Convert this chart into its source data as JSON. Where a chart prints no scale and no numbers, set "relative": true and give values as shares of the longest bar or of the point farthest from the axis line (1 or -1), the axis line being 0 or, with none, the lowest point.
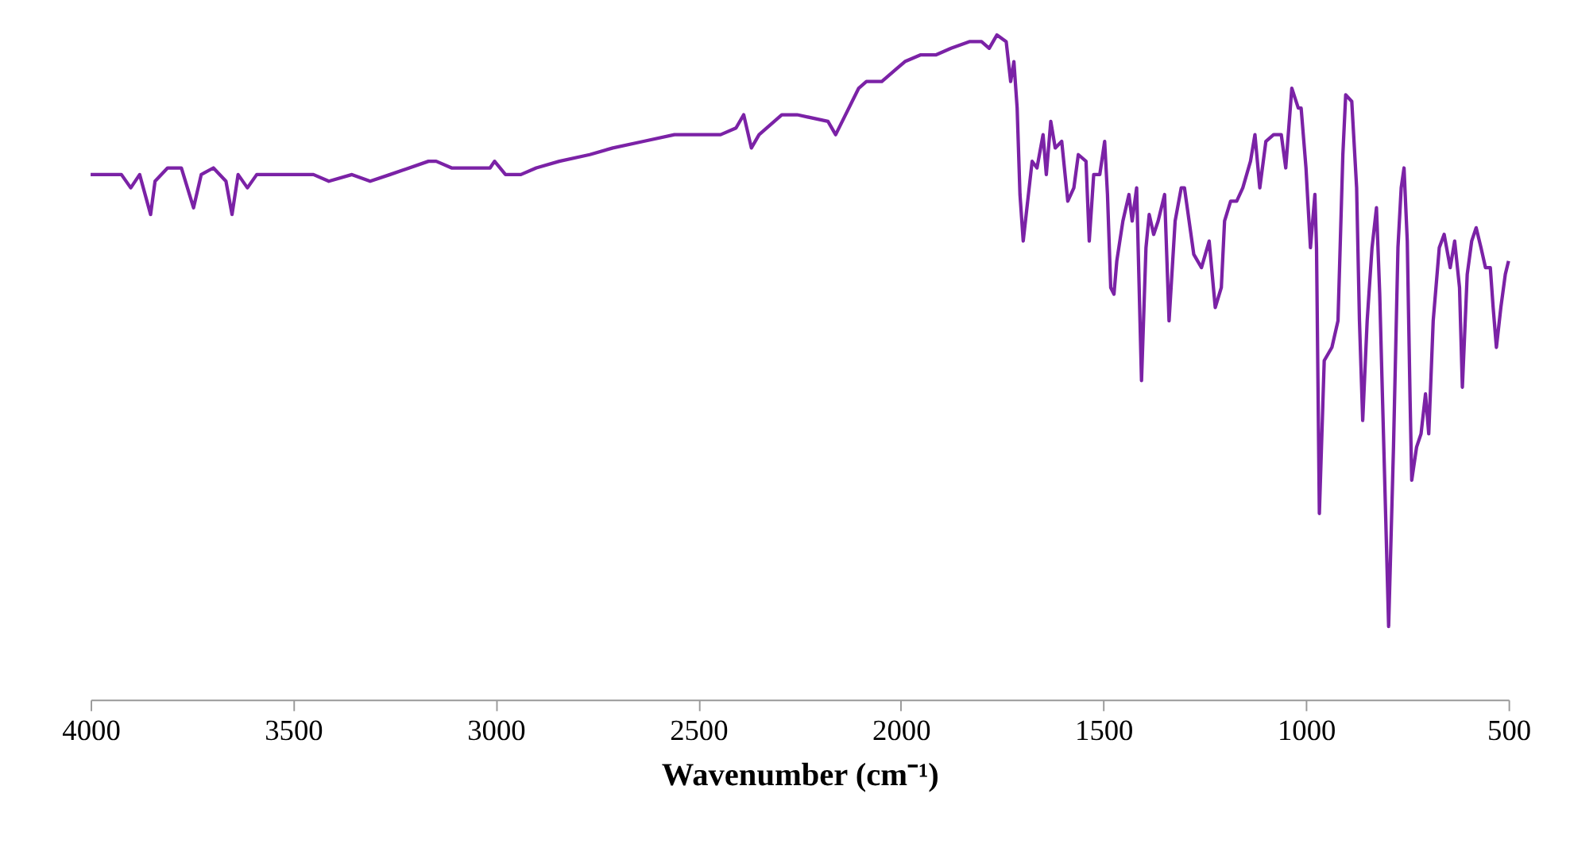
{
  "chart_data": {
    "type": "line",
    "relative": true,
    "xlabel": "Wavenumber (cm⁻¹)",
    "xlim": [
      4000,
      500
    ],
    "xticks": [
      4000,
      3500,
      3000,
      2500,
      2000,
      1500,
      1000,
      500
    ],
    "grid": false,
    "legend": false,
    "marker": "none",
    "line_style": "solid",
    "x": [
      4000,
      3924,
      3901,
      3879,
      3852,
      3841,
      3810,
      3776,
      3746,
      3727,
      3697,
      3666,
      3651,
      3636,
      3613,
      3590,
      3564,
      3488,
      3450,
      3412,
      3355,
      3310,
      3261,
      3166,
      3147,
      3109,
      3033,
      3014,
      3003,
      2976,
      2938,
      2900,
      2843,
      2768,
      2711,
      2635,
      2559,
      2445,
      2407,
      2388,
      2369,
      2350,
      2294,
      2256,
      2180,
      2161,
      2104,
      2085,
      2047,
      2009,
      1990,
      1952,
      1914,
      1876,
      1831,
      1801,
      1782,
      1763,
      1740,
      1729,
      1721,
      1713,
      1706,
      1698,
      1687,
      1676,
      1664,
      1649,
      1641,
      1630,
      1619,
      1603,
      1588,
      1573,
      1562,
      1543,
      1535,
      1524,
      1509,
      1497,
      1490,
      1482,
      1474,
      1467,
      1452,
      1437,
      1429,
      1418,
      1406,
      1395,
      1387,
      1376,
      1365,
      1349,
      1338,
      1323,
      1308,
      1300,
      1277,
      1258,
      1239,
      1224,
      1209,
      1201,
      1186,
      1171,
      1156,
      1137,
      1126,
      1114,
      1099,
      1080,
      1061,
      1050,
      1035,
      1019,
      1012,
      1000,
      989,
      978,
      974,
      967,
      955,
      936,
      921,
      909,
      902,
      887,
      875,
      868,
      860,
      849,
      837,
      826,
      818,
      811,
      796,
      784,
      773,
      765,
      758,
      750,
      743,
      739,
      727,
      716,
      705,
      697,
      686,
      671,
      659,
      644,
      633,
      621,
      614,
      602,
      591,
      580,
      568,
      557,
      545,
      538,
      530,
      519,
      508,
      500
    ],
    "series": [
      {
        "color": "#7b22a6",
        "values": [
          0.79,
          0.79,
          0.77,
          0.79,
          0.73,
          0.78,
          0.8,
          0.8,
          0.74,
          0.79,
          0.8,
          0.78,
          0.73,
          0.79,
          0.77,
          0.79,
          0.79,
          0.79,
          0.79,
          0.78,
          0.79,
          0.78,
          0.79,
          0.81,
          0.81,
          0.8,
          0.8,
          0.8,
          0.81,
          0.79,
          0.79,
          0.8,
          0.81,
          0.82,
          0.83,
          0.84,
          0.85,
          0.85,
          0.86,
          0.88,
          0.83,
          0.85,
          0.88,
          0.88,
          0.87,
          0.85,
          0.92,
          0.93,
          0.93,
          0.95,
          0.96,
          0.97,
          0.97,
          0.98,
          0.99,
          0.99,
          0.98,
          1.0,
          0.99,
          0.93,
          0.96,
          0.89,
          0.76,
          0.69,
          0.75,
          0.81,
          0.8,
          0.85,
          0.79,
          0.87,
          0.83,
          0.84,
          0.75,
          0.77,
          0.82,
          0.81,
          0.69,
          0.79,
          0.79,
          0.84,
          0.76,
          0.62,
          0.61,
          0.66,
          0.72,
          0.76,
          0.72,
          0.77,
          0.48,
          0.68,
          0.73,
          0.7,
          0.72,
          0.76,
          0.57,
          0.72,
          0.77,
          0.77,
          0.67,
          0.65,
          0.69,
          0.59,
          0.62,
          0.72,
          0.75,
          0.75,
          0.77,
          0.81,
          0.85,
          0.77,
          0.84,
          0.85,
          0.85,
          0.8,
          0.92,
          0.89,
          0.89,
          0.8,
          0.68,
          0.76,
          0.68,
          0.28,
          0.51,
          0.53,
          0.57,
          0.82,
          0.91,
          0.9,
          0.77,
          0.57,
          0.42,
          0.57,
          0.68,
          0.74,
          0.61,
          0.45,
          0.11,
          0.38,
          0.68,
          0.77,
          0.8,
          0.69,
          0.45,
          0.33,
          0.38,
          0.4,
          0.46,
          0.4,
          0.57,
          0.68,
          0.7,
          0.65,
          0.69,
          0.62,
          0.47,
          0.64,
          0.69,
          0.71,
          0.68,
          0.65,
          0.65,
          0.59,
          0.53,
          0.59,
          0.64,
          0.66
        ]
      }
    ]
  }
}
